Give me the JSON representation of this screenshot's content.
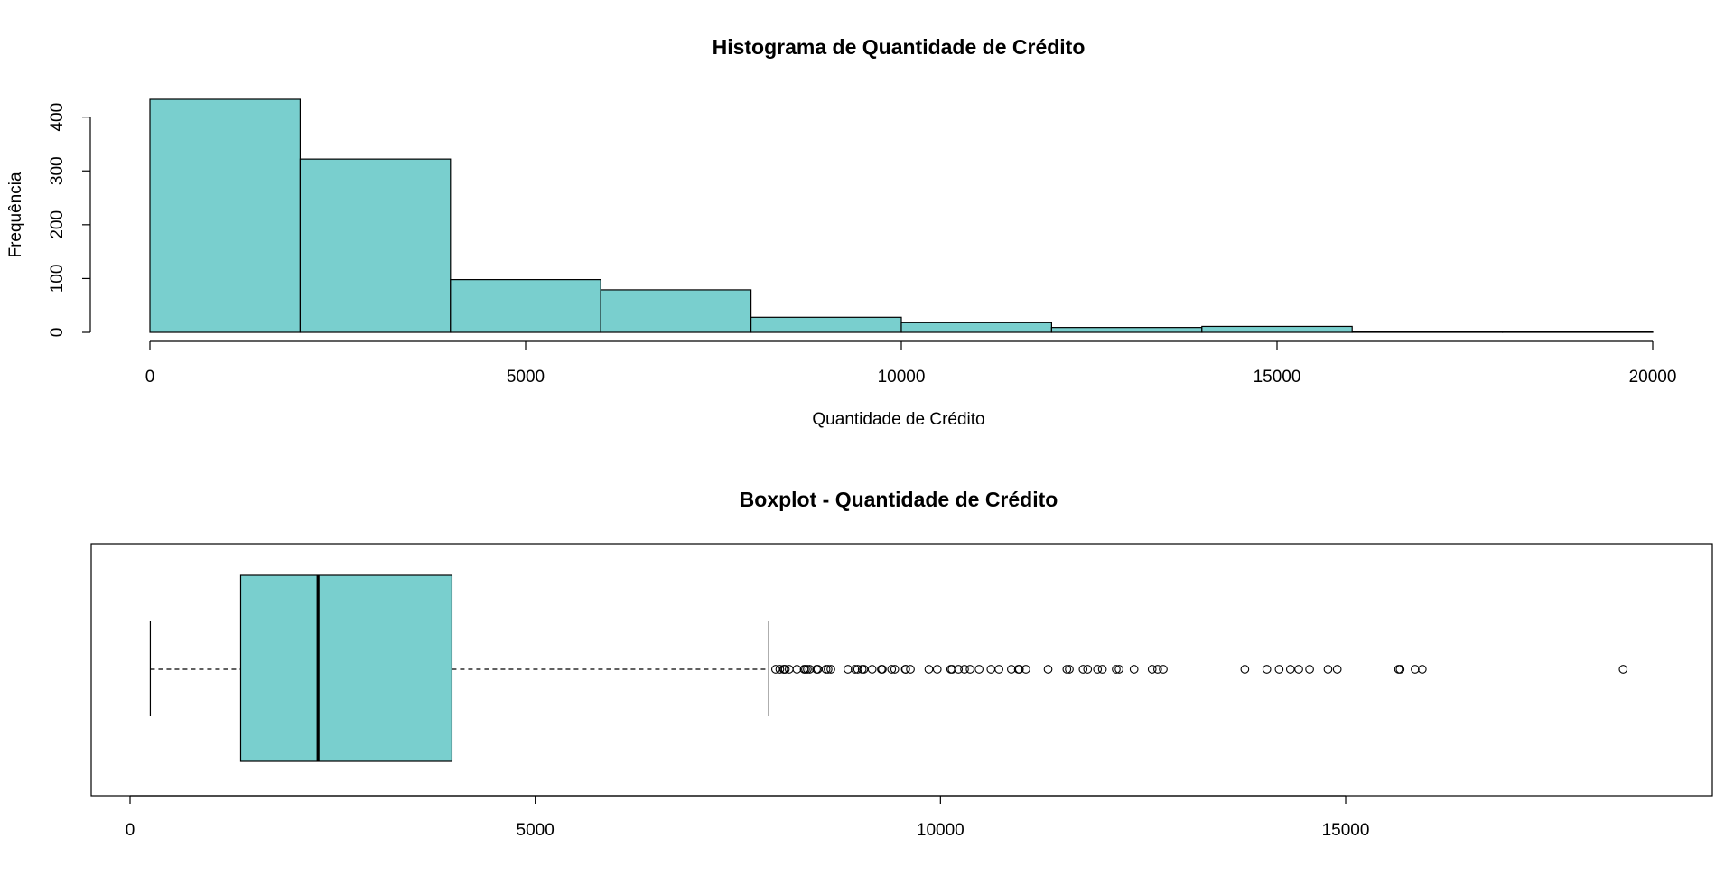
{
  "chart_data": [
    {
      "type": "histogram",
      "title": "Histograma de Quantidade de Crédito",
      "xlabel": "Quantidade de Crédito",
      "ylabel": "Frequência",
      "bin_edges": [
        0,
        2000,
        4000,
        6000,
        8000,
        10000,
        12000,
        14000,
        16000,
        18000,
        20000
      ],
      "values": [
        433,
        322,
        98,
        79,
        28,
        18,
        9,
        11,
        1,
        1
      ],
      "xlim": [
        0,
        20000
      ],
      "ylim": [
        0,
        433
      ],
      "x_ticks": [
        0,
        5000,
        10000,
        15000,
        20000
      ],
      "x_tick_labels": [
        "0",
        "5000",
        "10000",
        "15000",
        "20000"
      ],
      "y_ticks": [
        0,
        100,
        200,
        300,
        400
      ],
      "y_tick_labels": [
        "0",
        "100",
        "200",
        "300",
        "400"
      ],
      "fill_color": "#79cfce",
      "grid": false
    },
    {
      "type": "boxplot",
      "orientation": "horizontal",
      "title": "Boxplot - Quantidade de Crédito",
      "whisker_low": 250,
      "q1": 1365,
      "median": 2320,
      "q3": 3972,
      "whisker_high": 7882,
      "outliers": [
        7966,
        8018,
        8065,
        8072,
        8086,
        8133,
        8229,
        8318,
        8335,
        8358,
        8386,
        8471,
        8487,
        8588,
        8613,
        8648,
        8858,
        8947,
        8978,
        9034,
        9055,
        9157,
        9271,
        9283,
        9398,
        9436,
        9566,
        9572,
        9629,
        9857,
        9960,
        10127,
        10144,
        10222,
        10297,
        10366,
        10477,
        10623,
        10722,
        10875,
        10961,
        10974,
        11054,
        11328,
        11560,
        11590,
        11760,
        11816,
        11938,
        11998,
        12169,
        12204,
        12389,
        12612,
        12680,
        12749,
        13756,
        14027,
        14179,
        14318,
        14421,
        14555,
        14782,
        14896,
        15653,
        15672,
        15857,
        15945,
        18424
      ],
      "xlim": [
        0,
        18800
      ],
      "x_ticks": [
        0,
        5000,
        10000,
        15000
      ],
      "x_tick_labels": [
        "0",
        "5000",
        "10000",
        "15000"
      ],
      "fill_color": "#79cfce",
      "grid": false
    }
  ]
}
